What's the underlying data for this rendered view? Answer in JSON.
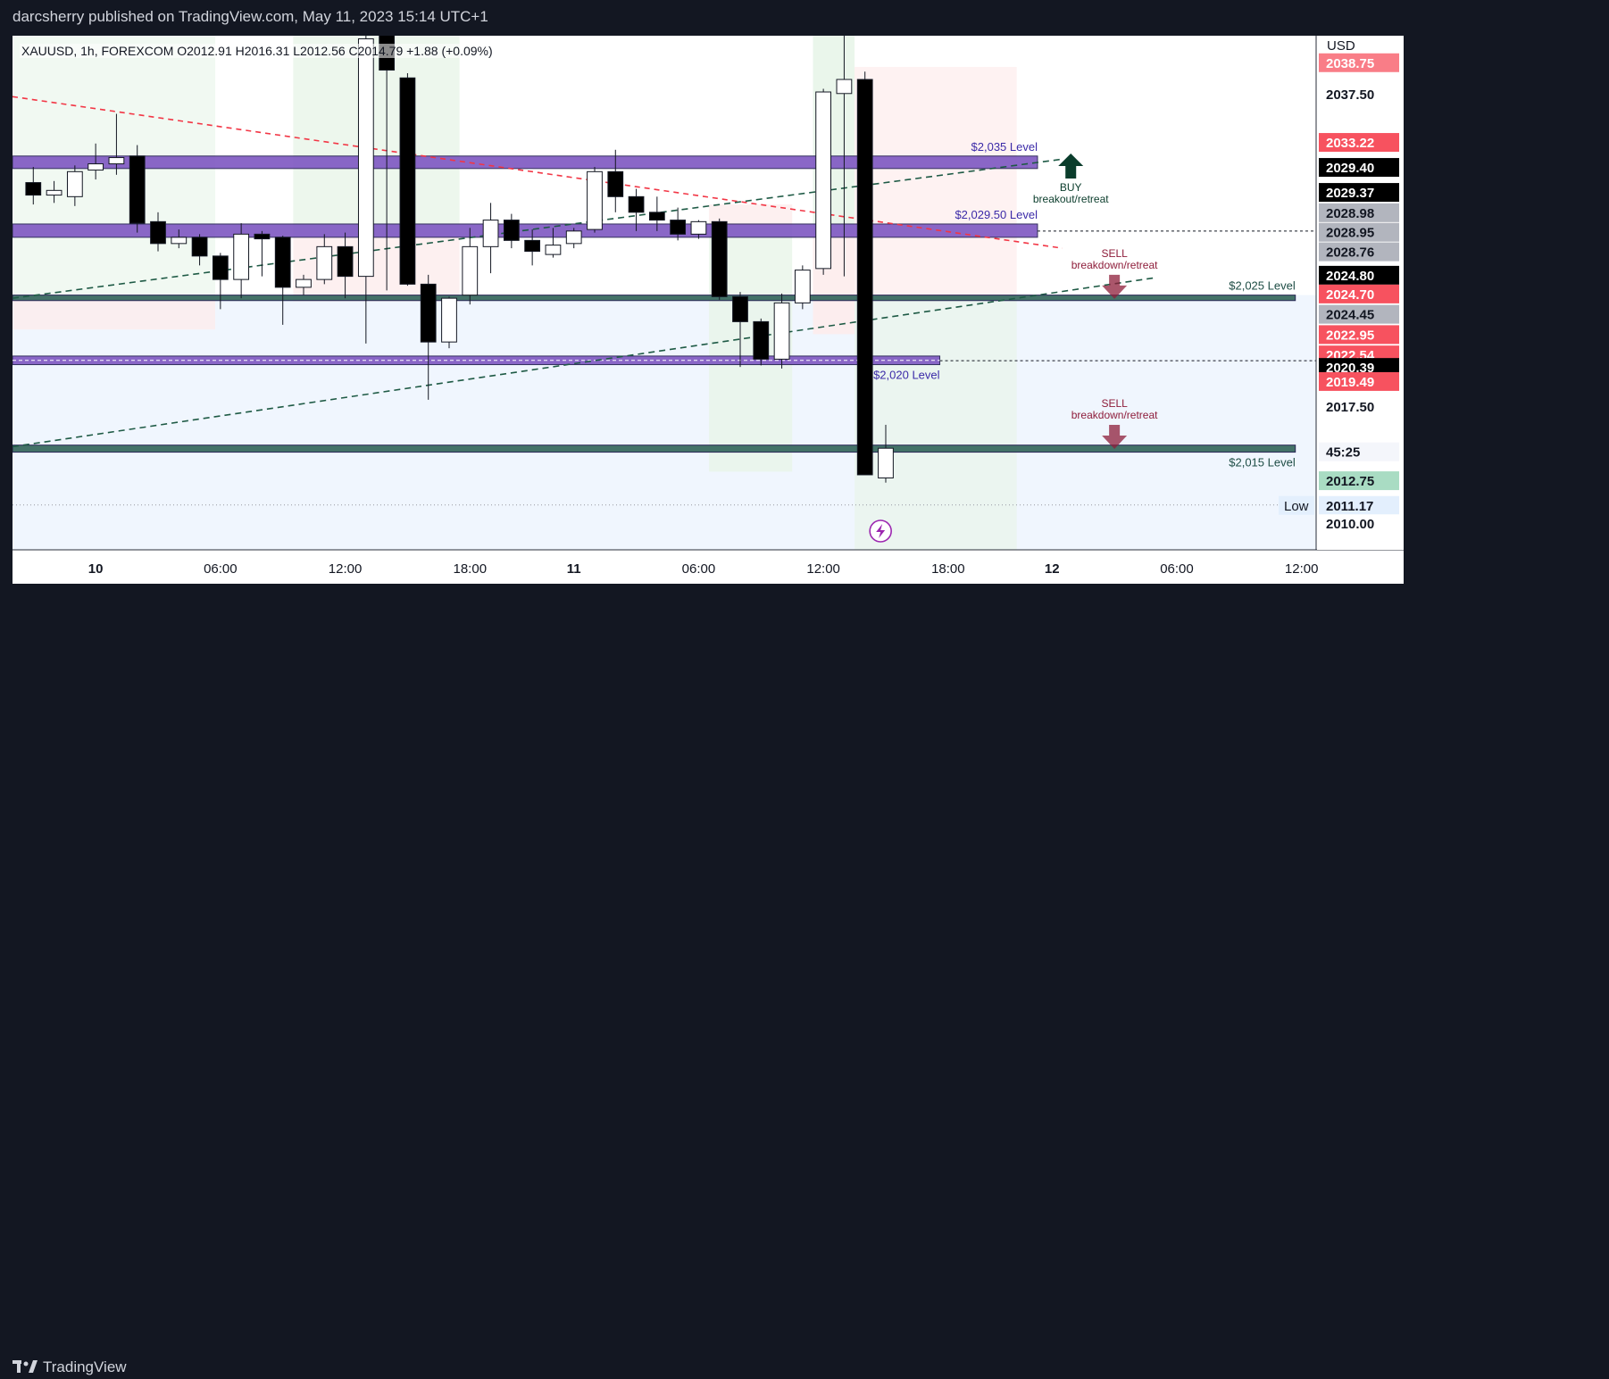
{
  "header": {
    "publisher_text": "darcsherry published on TradingView.com, May 11, 2023 15:14 UTC+1"
  },
  "footer": {
    "brand_label": "TradingView"
  },
  "chart_data": {
    "type": "candlestick",
    "symbol_line": "XAUUSD, 1h, FOREXCOM  O2012.91  H2016.31  L2012.56  C2014.79  +1.88 (+0.09%)",
    "currency_label": "USD",
    "ylim": [
      2008.3,
      2041.2
    ],
    "x_ticks": [
      {
        "t": 0,
        "label": "10",
        "bold": true
      },
      {
        "t": 6,
        "label": "06:00"
      },
      {
        "t": 12,
        "label": "12:00"
      },
      {
        "t": 18,
        "label": "18:00"
      },
      {
        "t": 23,
        "label": "11",
        "bold": true
      },
      {
        "t": 29,
        "label": "06:00"
      },
      {
        "t": 35,
        "label": "12:00"
      },
      {
        "t": 41,
        "label": "18:00"
      },
      {
        "t": 46,
        "label": "12",
        "bold": true
      },
      {
        "t": 52,
        "label": "06:00"
      },
      {
        "t": 58,
        "label": "12:00"
      }
    ],
    "y_ticks": [
      {
        "v": 2037.5,
        "label": "2037.50"
      },
      {
        "v": 2017.5,
        "label": "2017.50"
      },
      {
        "v": 2010.0,
        "label": "2010.00"
      }
    ],
    "candles": [
      {
        "t": -3,
        "o": 2031.8,
        "h": 2032.8,
        "l": 2030.4,
        "c": 2031.0
      },
      {
        "t": -2,
        "o": 2031.0,
        "h": 2031.9,
        "l": 2030.5,
        "c": 2031.3
      },
      {
        "t": -1,
        "o": 2030.9,
        "h": 2032.9,
        "l": 2030.3,
        "c": 2032.5
      },
      {
        "t": 0,
        "o": 2032.6,
        "h": 2034.3,
        "l": 2032.0,
        "c": 2033.0
      },
      {
        "t": 1,
        "o": 2033.0,
        "h": 2036.2,
        "l": 2032.3,
        "c": 2033.4
      },
      {
        "t": 2,
        "o": 2033.5,
        "h": 2034.2,
        "l": 2028.6,
        "c": 2029.2
      },
      {
        "t": 3,
        "o": 2029.3,
        "h": 2029.9,
        "l": 2027.4,
        "c": 2027.9
      },
      {
        "t": 4,
        "o": 2027.9,
        "h": 2028.8,
        "l": 2027.6,
        "c": 2028.3
      },
      {
        "t": 5,
        "o": 2028.3,
        "h": 2028.5,
        "l": 2026.5,
        "c": 2027.1
      },
      {
        "t": 6,
        "o": 2027.1,
        "h": 2027.3,
        "l": 2023.7,
        "c": 2025.6
      },
      {
        "t": 7,
        "o": 2025.6,
        "h": 2029.2,
        "l": 2024.4,
        "c": 2028.5
      },
      {
        "t": 8,
        "o": 2028.5,
        "h": 2028.7,
        "l": 2025.8,
        "c": 2028.2
      },
      {
        "t": 9,
        "o": 2028.3,
        "h": 2028.4,
        "l": 2022.7,
        "c": 2025.1
      },
      {
        "t": 10,
        "o": 2025.1,
        "h": 2025.9,
        "l": 2024.6,
        "c": 2025.6
      },
      {
        "t": 11,
        "o": 2025.6,
        "h": 2028.5,
        "l": 2025.3,
        "c": 2027.7
      },
      {
        "t": 12,
        "o": 2027.7,
        "h": 2028.6,
        "l": 2024.4,
        "c": 2025.8
      },
      {
        "t": 13,
        "o": 2025.8,
        "h": 2041.5,
        "l": 2021.5,
        "c": 2041.0
      },
      {
        "t": 14,
        "o": 2041.5,
        "h": 2041.5,
        "l": 2024.9,
        "c": 2039.0
      },
      {
        "t": 15,
        "o": 2038.5,
        "h": 2038.8,
        "l": 2025.2,
        "c": 2025.3
      },
      {
        "t": 16,
        "o": 2025.3,
        "h": 2025.9,
        "l": 2017.9,
        "c": 2021.6
      },
      {
        "t": 17,
        "o": 2021.6,
        "h": 2024.5,
        "l": 2021.2,
        "c": 2024.4
      },
      {
        "t": 18,
        "o": 2024.6,
        "h": 2028.9,
        "l": 2024.0,
        "c": 2027.7
      },
      {
        "t": 19,
        "o": 2027.7,
        "h": 2030.5,
        "l": 2026.0,
        "c": 2029.4
      },
      {
        "t": 20,
        "o": 2029.4,
        "h": 2029.8,
        "l": 2027.6,
        "c": 2028.1
      },
      {
        "t": 21,
        "o": 2028.1,
        "h": 2028.8,
        "l": 2026.5,
        "c": 2027.4
      },
      {
        "t": 22,
        "o": 2027.2,
        "h": 2028.9,
        "l": 2027.0,
        "c": 2027.8
      },
      {
        "t": 23,
        "o": 2027.9,
        "h": 2028.9,
        "l": 2027.6,
        "c": 2028.7
      },
      {
        "t": 24,
        "o": 2028.8,
        "h": 2032.8,
        "l": 2028.6,
        "c": 2032.5
      },
      {
        "t": 25,
        "o": 2032.5,
        "h": 2033.9,
        "l": 2029.9,
        "c": 2030.9
      },
      {
        "t": 26,
        "o": 2030.9,
        "h": 2031.4,
        "l": 2028.7,
        "c": 2029.9
      },
      {
        "t": 27,
        "o": 2029.9,
        "h": 2030.9,
        "l": 2028.7,
        "c": 2029.4
      },
      {
        "t": 28,
        "o": 2029.4,
        "h": 2030.2,
        "l": 2028.1,
        "c": 2028.5
      },
      {
        "t": 29,
        "o": 2028.5,
        "h": 2029.4,
        "l": 2028.2,
        "c": 2029.3
      },
      {
        "t": 30,
        "o": 2029.3,
        "h": 2029.5,
        "l": 2024.3,
        "c": 2024.5
      },
      {
        "t": 31,
        "o": 2024.5,
        "h": 2024.8,
        "l": 2020.0,
        "c": 2022.9
      },
      {
        "t": 32,
        "o": 2022.9,
        "h": 2023.1,
        "l": 2020.1,
        "c": 2020.5
      },
      {
        "t": 33,
        "o": 2020.5,
        "h": 2024.7,
        "l": 2019.9,
        "c": 2024.1
      },
      {
        "t": 34,
        "o": 2024.1,
        "h": 2026.5,
        "l": 2023.7,
        "c": 2026.2
      },
      {
        "t": 35,
        "o": 2026.3,
        "h": 2037.8,
        "l": 2025.9,
        "c": 2037.6
      },
      {
        "t": 36,
        "o": 2037.5,
        "h": 2041.5,
        "l": 2025.8,
        "c": 2038.4
      },
      {
        "t": 37,
        "o": 2038.4,
        "h": 2038.9,
        "l": 2013.1,
        "c": 2013.1
      },
      {
        "t": 38,
        "o": 2012.9,
        "h": 2016.3,
        "l": 2012.6,
        "c": 2014.8
      }
    ],
    "level_bands": [
      {
        "level": 2035,
        "lo": 2032.7,
        "hi": 2033.5,
        "t_from": -4,
        "t_to": 45.3,
        "style": "purple",
        "label": "$2,035 Level",
        "label_t": 45.3,
        "label_pos": "above"
      },
      {
        "level": 2029.5,
        "lo": 2028.3,
        "hi": 2029.15,
        "t_from": -4,
        "t_to": 45.3,
        "style": "purple",
        "label": "$2,029.50 Level",
        "label_t": 45.3,
        "label_pos": "above"
      },
      {
        "level": 2025,
        "lo": 2024.25,
        "hi": 2024.6,
        "t_from": -4,
        "t_to": 57.7,
        "style": "teal",
        "label": "$2,025 Level",
        "label_t": 57.7,
        "label_pos": "above"
      },
      {
        "level": 2020,
        "lo": 2020.15,
        "hi": 2020.7,
        "t_from": -4,
        "t_to": 40.6,
        "style": "purple-dashed",
        "label": "$2,020 Level",
        "label_t": 40.6,
        "label_pos": "below"
      },
      {
        "level": 2015,
        "lo": 2014.55,
        "hi": 2015.0,
        "t_from": -4,
        "t_to": 57.7,
        "style": "teal",
        "label": "$2,015 Level",
        "label_t": 57.7,
        "label_pos": "below"
      }
    ],
    "annotations": [
      {
        "type": "buy",
        "t": 46.9,
        "value": 2033.2,
        "line1": "BUY",
        "line2": "breakout/retreat",
        "color": "#0b3d2c"
      },
      {
        "type": "sell",
        "t": 49.0,
        "value": 2025.9,
        "line1": "SELL",
        "line2": "breakdown/retreat",
        "color": "#8e1d3a"
      },
      {
        "type": "sell",
        "t": 49.0,
        "value": 2016.3,
        "line1": "SELL",
        "line2": "breakdown/retreat",
        "color": "#8e1d3a"
      }
    ],
    "price_labels": [
      {
        "value": 2039.5,
        "label": "2038.75",
        "bg": "#f7525f",
        "fg": "#ffffff",
        "partial": true
      },
      {
        "value": 2037.5,
        "label": "2037.50",
        "bg": "#ffffff",
        "fg": "#131722"
      },
      {
        "value": 2034.4,
        "label": "2033.22",
        "bg": "#f7525f",
        "fg": "#ffffff"
      },
      {
        "value": 2032.8,
        "label": "2029.40",
        "bg": "#000000",
        "fg": "#ffffff"
      },
      {
        "value": 2031.2,
        "label": "2029.37",
        "bg": "#000000",
        "fg": "#ffffff"
      },
      {
        "value": 2029.9,
        "label": "2028.98",
        "bg": "#b2b5be",
        "fg": "#131722"
      },
      {
        "value": 2028.65,
        "label": "2028.95",
        "bg": "#b2b5be",
        "fg": "#131722"
      },
      {
        "value": 2027.4,
        "label": "2028.76",
        "bg": "#b2b5be",
        "fg": "#131722"
      },
      {
        "value": 2025.9,
        "label": "2024.80",
        "bg": "#000000",
        "fg": "#ffffff"
      },
      {
        "value": 2024.7,
        "label": "2024.70",
        "bg": "#f7525f",
        "fg": "#ffffff"
      },
      {
        "value": 2023.4,
        "label": "2024.45",
        "bg": "#b2b5be",
        "fg": "#131722"
      },
      {
        "value": 2022.1,
        "label": "2022.95",
        "bg": "#f7525f",
        "fg": "#ffffff"
      },
      {
        "value": 2020.8,
        "label": "2022.54",
        "bg": "#f7525f",
        "fg": "#ffffff"
      },
      {
        "value": 2020.0,
        "label": "2020.39",
        "bg": "#000000",
        "fg": "#ffffff"
      },
      {
        "value": 2019.1,
        "label": "2019.49",
        "bg": "#f7525f",
        "fg": "#ffffff"
      },
      {
        "value": 2017.5,
        "label": "2017.50",
        "bg": "#ffffff",
        "fg": "#131722"
      },
      {
        "value": 2014.6,
        "label": "45:25",
        "bg": "#f0f3fa",
        "fg": "#131722",
        "partial": true
      },
      {
        "value": 2012.75,
        "label": "2012.75",
        "bg": "#a9dcc3",
        "fg": "#131722"
      },
      {
        "value": 2011.17,
        "label": "2011.17",
        "bg": "#e3effd",
        "fg": "#131722"
      },
      {
        "value": 2010.0,
        "label": "2010.00",
        "bg": "#ffffff",
        "fg": "#131722"
      }
    ],
    "low_marker": {
      "value": 2011.17,
      "label": "Low"
    },
    "trendlines": [
      {
        "t1": -4,
        "v1": 2037.3,
        "t2": 46.5,
        "v2": 2027.6,
        "color": "#f23645",
        "dash": "6,5"
      },
      {
        "t1": -4,
        "v1": 2024.4,
        "t2": 46.5,
        "v2": 2033.3,
        "color": "#1e5a45",
        "dash": "7,5"
      },
      {
        "t1": -4,
        "v1": 2014.9,
        "t2": 50.9,
        "v2": 2025.7,
        "color": "#1e5a45",
        "dash": "7,5"
      }
    ],
    "colors": {
      "up_candle": "#ffffff",
      "down_candle": "#000000",
      "level_purple": "#7e57c2",
      "level_teal": "#3b6b61",
      "zone_green": "#e8f5e9",
      "zone_red": "#fdecec",
      "zone_blue": "#e3effd"
    },
    "event_icon": "lightning-icon"
  }
}
